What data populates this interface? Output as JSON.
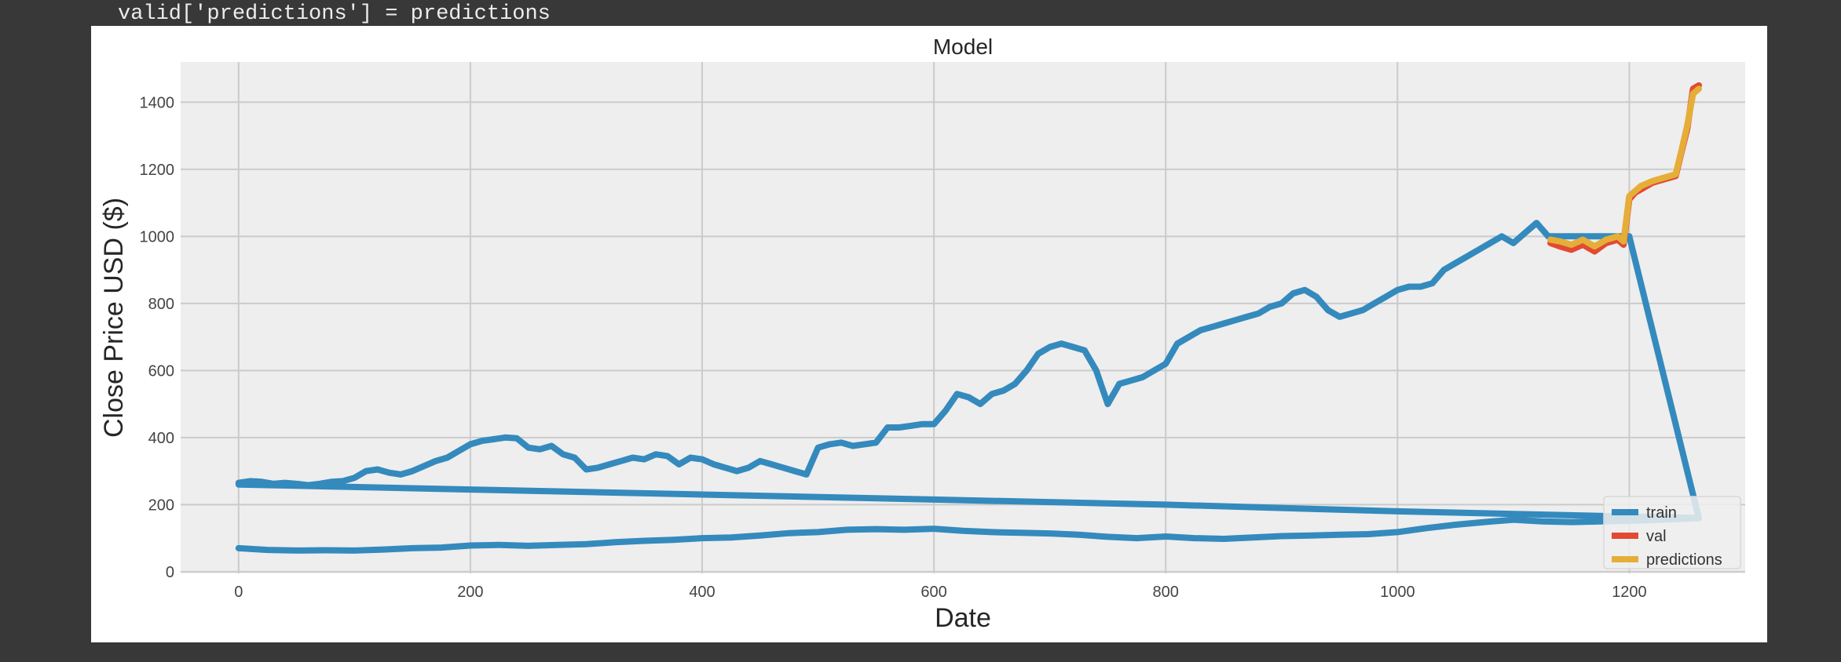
{
  "code": {
    "text": "valid['predictions'] = predictions"
  },
  "chart_data": {
    "type": "line",
    "title": "Model",
    "xlabel": "Date",
    "ylabel": "Close Price USD ($)",
    "xlim": [
      -50,
      1300
    ],
    "ylim": [
      -5,
      1520
    ],
    "xticks": [
      0,
      200,
      400,
      600,
      800,
      1000,
      1200
    ],
    "yticks": [
      0,
      200,
      400,
      600,
      800,
      1000,
      1200,
      1400
    ],
    "grid": true,
    "legend_position": "lower-right",
    "series": [
      {
        "name": "train",
        "color": "#348ABD",
        "segments": [
          {
            "x": [
              0,
              10,
              20,
              30,
              40,
              50,
              60,
              70,
              80,
              90,
              100,
              110,
              120,
              130,
              140,
              150,
              160,
              170,
              180,
              190,
              200,
              210,
              220,
              230,
              240,
              250,
              260,
              270,
              280,
              290,
              300,
              310,
              320,
              330,
              340,
              350,
              360,
              370,
              380,
              390,
              400,
              410,
              420,
              430,
              440,
              450,
              460,
              470,
              480,
              490,
              500,
              510,
              520,
              530,
              540,
              550,
              560,
              570,
              580,
              590,
              600,
              610,
              620,
              630,
              640,
              650,
              660,
              670,
              680,
              690,
              700,
              710,
              720,
              730,
              740,
              750,
              760,
              770,
              780,
              790,
              800,
              810,
              820,
              830,
              840,
              850,
              860,
              870,
              880,
              890,
              900,
              910,
              920,
              930,
              940,
              950,
              960,
              970,
              980,
              990,
              1000,
              1010,
              1020,
              1030,
              1040,
              1050,
              1060,
              1070,
              1080,
              1090,
              1100,
              1110,
              1120,
              1130
            ],
            "y": [
              265,
              270,
              268,
              262,
              265,
              262,
              258,
              262,
              268,
              270,
              280,
              300,
              305,
              295,
              290,
              300,
              315,
              330,
              340,
              360,
              380,
              390,
              395,
              400,
              398,
              370,
              365,
              375,
              350,
              340,
              305,
              310,
              320,
              330,
              340,
              335,
              350,
              345,
              320,
              340,
              335,
              320,
              310,
              300,
              310,
              330,
              320,
              310,
              300,
              290,
              370,
              380,
              385,
              375,
              380,
              385,
              430,
              430,
              435,
              440,
              440,
              480,
              530,
              520,
              500,
              530,
              540,
              560,
              600,
              650,
              670,
              680,
              670,
              660,
              600,
              500,
              560,
              570,
              580,
              600,
              620,
              680,
              700,
              720,
              730,
              740,
              750,
              760,
              770,
              790,
              800,
              830,
              840,
              820,
              780,
              760,
              770,
              780,
              800,
              820,
              840,
              850,
              850,
              860,
              900,
              920,
              940,
              960,
              980,
              1000,
              980,
              1010,
              1040,
              1000
            ]
          },
          {
            "x": [
              1130,
              1200,
              1260
            ],
            "y": [
              1000,
              1000,
              160
            ]
          },
          {
            "x": [
              1260,
              1000,
              800,
              600,
              400,
              200,
              0
            ],
            "y": [
              160,
              180,
              200,
              215,
              230,
              245,
              260
            ]
          },
          {
            "x": [
              0,
              25,
              50,
              75,
              100,
              125,
              150,
              175,
              200,
              225,
              250,
              275,
              300,
              325,
              350,
              375,
              400,
              425,
              450,
              475,
              500,
              525,
              550,
              575,
              600,
              625,
              650,
              675,
              700,
              725,
              750,
              775,
              800,
              825,
              850,
              875,
              900,
              925,
              950,
              975,
              1000,
              1025,
              1050,
              1075,
              1100,
              1125,
              1150,
              1175,
              1200,
              1225,
              1250,
              1260
            ],
            "y": [
              70,
              65,
              63,
              64,
              63,
              66,
              70,
              72,
              78,
              80,
              77,
              80,
              82,
              88,
              92,
              95,
              100,
              102,
              108,
              115,
              118,
              125,
              127,
              125,
              128,
              122,
              118,
              116,
              114,
              110,
              104,
              100,
              105,
              100,
              98,
              102,
              106,
              108,
              110,
              112,
              118,
              130,
              140,
              148,
              155,
              150,
              148,
              150,
              152,
              155,
              158,
              160
            ]
          }
        ]
      },
      {
        "name": "val",
        "color": "#E24A33",
        "segments": [
          {
            "x": [
              1132,
              1140,
              1150,
              1160,
              1170,
              1180,
              1190,
              1195,
              1200,
              1205,
              1210,
              1220,
              1230,
              1240,
              1245,
              1250,
              1255,
              1260
            ],
            "y": [
              980,
              970,
              960,
              975,
              955,
              980,
              990,
              975,
              1110,
              1130,
              1140,
              1160,
              1170,
              1180,
              1250,
              1320,
              1440,
              1450
            ]
          }
        ]
      },
      {
        "name": "predictions",
        "color": "#E5AE38",
        "segments": [
          {
            "x": [
              1132,
              1140,
              1150,
              1160,
              1170,
              1180,
              1190,
              1195,
              1200,
              1205,
              1210,
              1220,
              1230,
              1240,
              1245,
              1250,
              1255,
              1260
            ],
            "y": [
              990,
              985,
              975,
              990,
              970,
              990,
              1000,
              985,
              1120,
              1135,
              1150,
              1165,
              1175,
              1185,
              1255,
              1330,
              1425,
              1440
            ]
          }
        ]
      }
    ]
  }
}
